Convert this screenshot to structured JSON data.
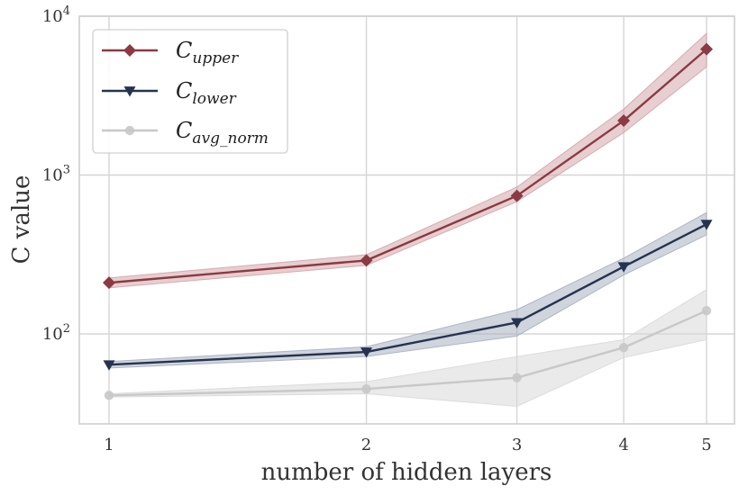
{
  "chart_data": {
    "type": "line",
    "title": "",
    "xlabel": "number of hidden layers",
    "ylabel": "C value",
    "x": [
      1,
      2,
      3,
      4,
      5
    ],
    "x_ticks": [
      "1",
      "2",
      "3",
      "4",
      "5"
    ],
    "y_scale": "log",
    "ylim": [
      25,
      10000
    ],
    "y_ticks": [
      {
        "value": 100,
        "base": "10",
        "exp": "2"
      },
      {
        "value": 1000,
        "base": "10",
        "exp": "3"
      },
      {
        "value": 10000,
        "base": "10",
        "exp": "4"
      }
    ],
    "grid": true,
    "legend_position": "top-left",
    "series": [
      {
        "name": "C_upper",
        "label_main": "C",
        "label_sub": "upper",
        "color": "#8b3a42",
        "band_color": "#d4a5aa",
        "marker": "diamond",
        "values": [
          210,
          290,
          740,
          2200,
          6200
        ],
        "lower": [
          195,
          270,
          680,
          1850,
          4800
        ],
        "upper": [
          225,
          315,
          840,
          2600,
          7800
        ]
      },
      {
        "name": "C_lower",
        "label_main": "C",
        "label_sub": "lower",
        "color": "#243450",
        "band_color": "#a8b1c1",
        "marker": "triangle-down",
        "values": [
          64,
          77,
          118,
          265,
          490
        ],
        "lower": [
          61,
          72,
          97,
          235,
          420
        ],
        "upper": [
          67,
          83,
          142,
          300,
          580
        ]
      },
      {
        "name": "C_avg_norm",
        "label_main": "C",
        "label_sub": "avg_norm",
        "color": "#c8c8c8",
        "band_color": "#d9d9d9",
        "marker": "circle",
        "values": [
          41,
          45,
          53,
          82,
          140
        ],
        "lower": [
          40,
          42,
          35,
          71,
          92
        ],
        "upper": [
          42,
          50,
          72,
          92,
          190
        ]
      }
    ]
  }
}
